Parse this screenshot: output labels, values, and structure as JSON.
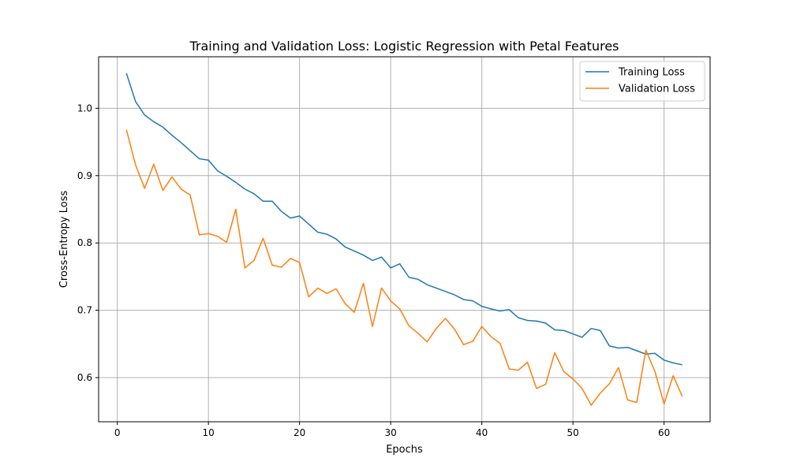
{
  "chart_data": {
    "type": "line",
    "title": "Training and Validation Loss: Logistic Regression with Petal Features",
    "xlabel": "Epochs",
    "ylabel": "Cross-Entropy Loss",
    "xlim": [
      -2.05,
      65.05
    ],
    "ylim": [
      0.5345,
      1.0765
    ],
    "xticks": [
      0,
      10,
      20,
      30,
      40,
      50,
      60
    ],
    "yticks": [
      0.6,
      0.7,
      0.8,
      0.9,
      1.0
    ],
    "grid": true,
    "legend_position": "top-right",
    "x": [
      1,
      2,
      3,
      4,
      5,
      6,
      7,
      8,
      9,
      10,
      11,
      12,
      13,
      14,
      15,
      16,
      17,
      18,
      19,
      20,
      21,
      22,
      23,
      24,
      25,
      26,
      27,
      28,
      29,
      30,
      31,
      32,
      33,
      34,
      35,
      36,
      37,
      38,
      39,
      40,
      41,
      42,
      43,
      44,
      45,
      46,
      47,
      48,
      49,
      50,
      51,
      52,
      53,
      54,
      55,
      56,
      57,
      58,
      59,
      60,
      61,
      62
    ],
    "series": [
      {
        "name": "Training Loss",
        "color": "#1f77b4",
        "values": [
          1.052,
          1.01,
          0.99,
          0.98,
          0.972,
          0.96,
          0.949,
          0.937,
          0.925,
          0.923,
          0.907,
          0.899,
          0.89,
          0.88,
          0.873,
          0.862,
          0.862,
          0.847,
          0.837,
          0.84,
          0.828,
          0.816,
          0.813,
          0.806,
          0.794,
          0.788,
          0.782,
          0.774,
          0.779,
          0.763,
          0.769,
          0.749,
          0.746,
          0.738,
          0.733,
          0.728,
          0.723,
          0.716,
          0.714,
          0.706,
          0.702,
          0.699,
          0.701,
          0.689,
          0.685,
          0.684,
          0.681,
          0.671,
          0.67,
          0.665,
          0.66,
          0.673,
          0.67,
          0.647,
          0.644,
          0.645,
          0.64,
          0.635,
          0.636,
          0.626,
          0.622,
          0.619
        ]
      },
      {
        "name": "Validation Loss",
        "color": "#ff7f0e",
        "values": [
          0.968,
          0.916,
          0.881,
          0.917,
          0.878,
          0.898,
          0.88,
          0.871,
          0.812,
          0.814,
          0.81,
          0.801,
          0.85,
          0.763,
          0.774,
          0.807,
          0.767,
          0.764,
          0.777,
          0.771,
          0.72,
          0.733,
          0.725,
          0.732,
          0.71,
          0.697,
          0.74,
          0.676,
          0.733,
          0.714,
          0.702,
          0.677,
          0.666,
          0.653,
          0.673,
          0.688,
          0.672,
          0.649,
          0.654,
          0.676,
          0.661,
          0.651,
          0.613,
          0.611,
          0.623,
          0.584,
          0.59,
          0.637,
          0.609,
          0.598,
          0.584,
          0.559,
          0.577,
          0.591,
          0.615,
          0.567,
          0.563,
          0.641,
          0.609,
          0.561,
          0.603,
          0.572
        ]
      }
    ]
  }
}
